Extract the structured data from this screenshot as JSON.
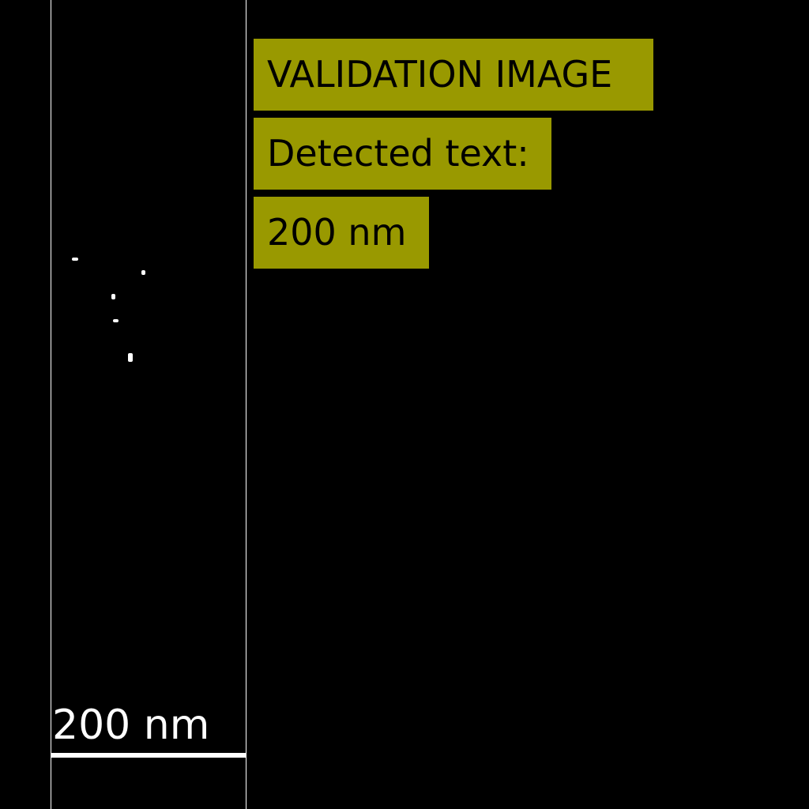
{
  "colors": {
    "background": "#000000",
    "foreground": "#ffffff",
    "label_background": "#999900",
    "label_text": "#000000"
  },
  "image_panel": {
    "scale_bar_label": "200 nm"
  },
  "overlay": {
    "title": "VALIDATION IMAGE",
    "detected_heading": "Detected text:",
    "detected_value": "200 nm"
  }
}
